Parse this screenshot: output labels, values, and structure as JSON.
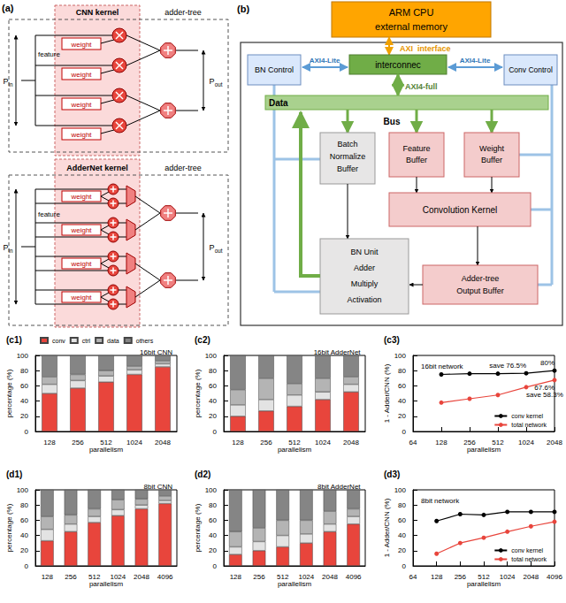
{
  "chart_data": [
    {
      "panel": "(c1)",
      "type": "bar",
      "title": "16bit CNN",
      "stacked": true,
      "grid": false,
      "legend": "upper left",
      "categories": [
        "128",
        "256",
        "512",
        "1024",
        "2048"
      ],
      "series": [
        {
          "name": "conv",
          "color": "#e8453c",
          "values": [
            50,
            57,
            65,
            75,
            85
          ]
        },
        {
          "name": "ctrl",
          "color": "#e3e3e3",
          "values": [
            12,
            10,
            8,
            6,
            4
          ]
        },
        {
          "name": "data",
          "color": "#b4b4b4",
          "values": [
            10,
            8,
            7,
            5,
            4
          ]
        },
        {
          "name": "others",
          "color": "#858585",
          "values": [
            28,
            25,
            20,
            14,
            7
          ]
        }
      ],
      "xlabel": "parallelism",
      "ylabel": "percentage (%)",
      "ylim": [
        0,
        100
      ],
      "yticks": [
        0,
        20,
        40,
        60,
        80,
        100
      ]
    },
    {
      "panel": "(c2)",
      "type": "bar",
      "title": "16bit AdderNet",
      "stacked": true,
      "grid": false,
      "categories": [
        "128",
        "256",
        "512",
        "1024",
        "2048"
      ],
      "series": [
        {
          "name": "conv",
          "color": "#e8453c",
          "values": [
            20,
            27,
            33,
            42,
            52
          ]
        },
        {
          "name": "ctrl",
          "color": "#e3e3e3",
          "values": [
            15,
            15,
            15,
            10,
            10
          ]
        },
        {
          "name": "data",
          "color": "#b4b4b4",
          "values": [
            20,
            28,
            15,
            18,
            10
          ]
        },
        {
          "name": "others",
          "color": "#858585",
          "values": [
            45,
            30,
            37,
            30,
            28
          ]
        }
      ],
      "xlabel": "parallelism",
      "ylabel": "percentage (%)",
      "ylim": [
        0,
        100
      ],
      "yticks": [
        0,
        20,
        40,
        60,
        80,
        100
      ]
    },
    {
      "panel": "(c3)",
      "type": "line",
      "title": "16bit network",
      "grid": false,
      "legend": "lower right",
      "log": "x",
      "x": [
        128,
        256,
        512,
        1024,
        2048
      ],
      "series": [
        {
          "name": "conv kernel",
          "color": "#000000",
          "marker": "circle",
          "line_style": "solid",
          "values": [
            75,
            76,
            76,
            76.5,
            80
          ]
        },
        {
          "name": "total network",
          "color": "#e8453c",
          "marker": "circle",
          "line_style": "solid",
          "values": [
            38,
            43,
            48,
            58.3,
            67.6
          ]
        }
      ],
      "annotations": [
        {
          "text": "save 76.5%",
          "series": "conv kernel",
          "x": 1024
        },
        {
          "text": "80%",
          "series": "conv kernel",
          "x": 2048
        },
        {
          "text": "save 58.3%",
          "series": "total network",
          "x": 1024
        },
        {
          "text": "67.6%",
          "series": "total network",
          "x": 2048
        }
      ],
      "xlabel": "parallelism",
      "ylabel": "1 - Adder/CNN (%)",
      "xlim": [
        64,
        2048
      ],
      "xticks": [
        64,
        128,
        256,
        512,
        1024,
        2048
      ],
      "ylim": [
        0,
        100
      ],
      "yticks": [
        0,
        20,
        40,
        60,
        80,
        100
      ]
    },
    {
      "panel": "(d1)",
      "type": "bar",
      "title": "8bit CNN",
      "stacked": true,
      "grid": false,
      "categories": [
        "128",
        "256",
        "512",
        "1024",
        "2048",
        "4096"
      ],
      "series": [
        {
          "name": "conv",
          "color": "#e8453c",
          "values": [
            33,
            45,
            57,
            66,
            75,
            82
          ]
        },
        {
          "name": "ctrl",
          "color": "#e3e3e3",
          "values": [
            15,
            10,
            8,
            8,
            5,
            4
          ]
        },
        {
          "name": "data",
          "color": "#b4b4b4",
          "values": [
            17,
            12,
            10,
            13,
            8,
            6
          ]
        },
        {
          "name": "others",
          "color": "#858585",
          "values": [
            35,
            33,
            25,
            13,
            12,
            8
          ]
        }
      ],
      "xlabel": "parallelism",
      "ylabel": "percentage (%)",
      "ylim": [
        0,
        100
      ],
      "yticks": [
        0,
        20,
        40,
        60,
        80,
        100
      ]
    },
    {
      "panel": "(d2)",
      "type": "bar",
      "title": "8bit AdderNet",
      "stacked": true,
      "grid": false,
      "categories": [
        "128",
        "256",
        "512",
        "1024",
        "2048",
        "4096"
      ],
      "series": [
        {
          "name": "conv",
          "color": "#e8453c",
          "values": [
            15,
            20,
            25,
            30,
            45,
            55
          ]
        },
        {
          "name": "ctrl",
          "color": "#e3e3e3",
          "values": [
            10,
            12,
            15,
            12,
            10,
            10
          ]
        },
        {
          "name": "data",
          "color": "#b4b4b4",
          "values": [
            20,
            18,
            20,
            18,
            17,
            10
          ]
        },
        {
          "name": "others",
          "color": "#858585",
          "values": [
            55,
            50,
            40,
            40,
            28,
            25
          ]
        }
      ],
      "xlabel": "parallelism",
      "ylabel": "percentage (%)",
      "ylim": [
        0,
        100
      ],
      "yticks": [
        0,
        20,
        40,
        60,
        80,
        100
      ]
    },
    {
      "panel": "(d3)",
      "type": "line",
      "title": "8bit network",
      "grid": false,
      "legend": "lower right",
      "log": "x",
      "x": [
        128,
        256,
        512,
        1024,
        2048,
        4096
      ],
      "series": [
        {
          "name": "conv kernel",
          "color": "#000000",
          "marker": "circle",
          "line_style": "solid",
          "values": [
            59,
            68,
            67,
            71,
            71,
            71
          ]
        },
        {
          "name": "total network",
          "color": "#e8453c",
          "marker": "circle",
          "line_style": "solid",
          "values": [
            16,
            30,
            37,
            45,
            52,
            58
          ]
        }
      ],
      "xlabel": "parallelism",
      "ylabel": "1 - Adder/CNN (%)",
      "xlim": [
        64,
        4096
      ],
      "xticks": [
        64,
        128,
        256,
        512,
        1024,
        2048,
        4096
      ],
      "ylim": [
        0,
        100
      ],
      "yticks": [
        0,
        20,
        40,
        60,
        80,
        100
      ]
    }
  ],
  "diagram": {
    "a": {
      "panel": "(a)",
      "cnn": {
        "kernel": "CNN kernel",
        "tree": "adder-tree",
        "feature": "feature",
        "weights": [
          "weight",
          "weight",
          "weight",
          "weight"
        ],
        "p_in": {
          "base": "P",
          "sub": "in"
        },
        "p_out": {
          "base": "P",
          "sub": "out"
        }
      },
      "adder": {
        "kernel": "AdderNet kernel",
        "tree": "adder-tree",
        "feature": "feature",
        "weights": [
          "weight",
          "weight",
          "weight",
          "weight"
        ],
        "p_in": {
          "base": "P",
          "sub": "in"
        },
        "p_out": {
          "base": "P",
          "sub": "out"
        }
      }
    },
    "b": {
      "panel": "(b)",
      "cpu": [
        "ARM CPU",
        "external memory"
      ],
      "axi": [
        "AXI",
        "interface"
      ],
      "interconnect": "interconnec",
      "bn_control": "BN Control",
      "conv_control": "Conv Control",
      "axi_lite": [
        "AXI4-Lite",
        "AXI4-Lite"
      ],
      "axi_full": "AXI4-full",
      "data": "Data",
      "bus": "Bus",
      "bn_buffer": [
        "Batch",
        "Normalize",
        "Buffer"
      ],
      "feature_buffer": [
        "Feature",
        "Buffer"
      ],
      "weight_buffer": [
        "Weight",
        "Buffer"
      ],
      "conv_kernel": "Convolution Kernel",
      "bn_unit": [
        "BN Unit",
        "Adder",
        "Multiply",
        "Activation"
      ],
      "output_buffer": [
        "Adder-tree",
        "Output Buffer"
      ]
    }
  }
}
